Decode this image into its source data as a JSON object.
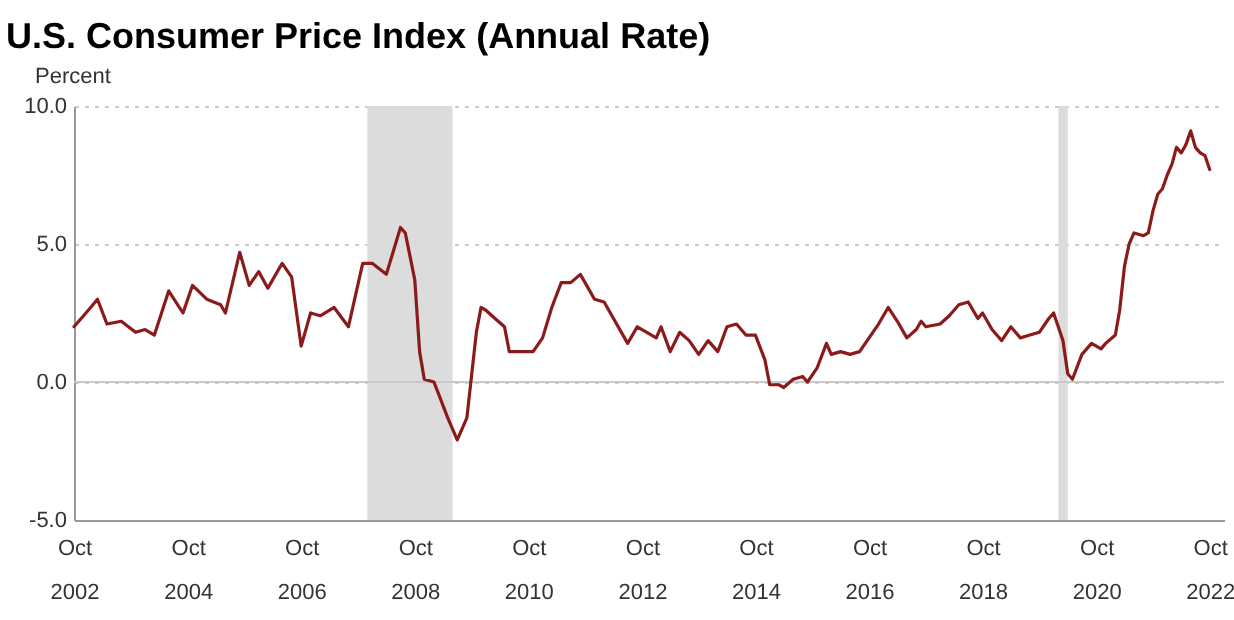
{
  "chart_data": {
    "type": "line",
    "title": "U.S. Consumer Price Index (Annual Rate)",
    "ylabel": "Percent",
    "x": [
      "2002-10",
      "2003-01",
      "2003-03",
      "2003-05",
      "2003-08",
      "2003-11",
      "2004-01",
      "2004-03",
      "2004-06",
      "2004-09",
      "2004-11",
      "2005-02",
      "2005-05",
      "2005-06",
      "2005-09",
      "2005-11",
      "2006-01",
      "2006-03",
      "2006-06",
      "2006-08",
      "2006-10",
      "2006-12",
      "2007-02",
      "2007-05",
      "2007-08",
      "2007-11",
      "2008-01",
      "2008-04",
      "2008-07",
      "2008-08",
      "2008-10",
      "2008-11",
      "2008-12",
      "2009-02",
      "2009-03",
      "2009-05",
      "2009-07",
      "2009-09",
      "2009-11",
      "2009-12",
      "2010-01",
      "2010-03",
      "2010-05",
      "2010-06",
      "2010-09",
      "2010-11",
      "2011-01",
      "2011-03",
      "2011-05",
      "2011-07",
      "2011-09",
      "2011-12",
      "2012-02",
      "2012-04",
      "2012-06",
      "2012-07",
      "2012-09",
      "2012-11",
      "2013-01",
      "2013-02",
      "2013-04",
      "2013-06",
      "2013-08",
      "2013-10",
      "2013-12",
      "2014-02",
      "2014-04",
      "2014-06",
      "2014-08",
      "2014-10",
      "2014-12",
      "2015-01",
      "2015-03",
      "2015-04",
      "2015-06",
      "2015-08",
      "2015-09",
      "2015-11",
      "2016-01",
      "2016-02",
      "2016-04",
      "2016-06",
      "2016-08",
      "2016-10",
      "2016-12",
      "2017-02",
      "2017-04",
      "2017-06",
      "2017-08",
      "2017-09",
      "2017-10",
      "2018-01",
      "2018-03",
      "2018-05",
      "2018-07",
      "2018-09",
      "2018-10",
      "2018-12",
      "2019-02",
      "2019-04",
      "2019-06",
      "2019-08",
      "2019-10",
      "2019-12",
      "2020-01",
      "2020-03",
      "2020-04",
      "2020-05",
      "2020-07",
      "2020-09",
      "2020-11",
      "2020-12",
      "2021-02",
      "2021-03",
      "2021-04",
      "2021-05",
      "2021-06",
      "2021-08",
      "2021-09",
      "2021-10",
      "2021-11",
      "2021-12",
      "2022-01",
      "2022-02",
      "2022-03",
      "2022-04",
      "2022-05",
      "2022-06",
      "2022-07",
      "2022-08",
      "2022-09",
      "2022-10"
    ],
    "series": [
      {
        "color": "#8b1a1a",
        "values": [
          2.0,
          2.6,
          3.0,
          2.1,
          2.2,
          1.8,
          1.9,
          1.7,
          3.3,
          2.5,
          3.5,
          3.0,
          2.8,
          2.5,
          4.7,
          3.5,
          4.0,
          3.4,
          4.3,
          3.8,
          1.3,
          2.5,
          2.4,
          2.7,
          2.0,
          4.3,
          4.3,
          3.9,
          5.6,
          5.4,
          3.7,
          1.1,
          0.1,
          0.0,
          -0.4,
          -1.3,
          -2.1,
          -1.3,
          1.8,
          2.7,
          2.6,
          2.3,
          2.0,
          1.1,
          1.1,
          1.1,
          1.6,
          2.7,
          3.6,
          3.6,
          3.9,
          3.0,
          2.9,
          2.3,
          1.7,
          1.4,
          2.0,
          1.8,
          1.6,
          2.0,
          1.1,
          1.8,
          1.5,
          1.0,
          1.5,
          1.1,
          2.0,
          2.1,
          1.7,
          1.7,
          0.8,
          -0.1,
          -0.1,
          -0.2,
          0.1,
          0.2,
          0.0,
          0.5,
          1.4,
          1.0,
          1.1,
          1.0,
          1.1,
          1.6,
          2.1,
          2.7,
          2.2,
          1.6,
          1.9,
          2.2,
          2.0,
          2.1,
          2.4,
          2.8,
          2.9,
          2.3,
          2.5,
          1.9,
          1.5,
          2.0,
          1.6,
          1.7,
          1.8,
          2.3,
          2.5,
          1.5,
          0.3,
          0.1,
          1.0,
          1.4,
          1.2,
          1.4,
          1.7,
          2.6,
          4.2,
          5.0,
          5.4,
          5.3,
          5.4,
          6.2,
          6.8,
          7.0,
          7.5,
          7.9,
          8.5,
          8.3,
          8.6,
          9.1,
          8.5,
          8.3,
          8.2,
          7.7
        ]
      }
    ],
    "xlim": [
      "2002-10",
      "2023-01"
    ],
    "xticks": [
      {
        "value": "2002-10",
        "label": "Oct 2002"
      },
      {
        "value": "2004-10",
        "label": "Oct 2004"
      },
      {
        "value": "2006-10",
        "label": "Oct 2006"
      },
      {
        "value": "2008-10",
        "label": "Oct 2008"
      },
      {
        "value": "2010-10",
        "label": "Oct 2010"
      },
      {
        "value": "2012-10",
        "label": "Oct 2012"
      },
      {
        "value": "2014-10",
        "label": "Oct 2014"
      },
      {
        "value": "2016-10",
        "label": "Oct 2016"
      },
      {
        "value": "2018-10",
        "label": "Oct 2018"
      },
      {
        "value": "2020-10",
        "label": "Oct 2020"
      },
      {
        "value": "2022-10",
        "label": "Oct 2022"
      }
    ],
    "ylim": [
      -5,
      10
    ],
    "yticks": [
      {
        "value": -5,
        "label": "-5.0"
      },
      {
        "value": 0,
        "label": "0.0"
      },
      {
        "value": 5,
        "label": "5.0"
      },
      {
        "value": 10,
        "label": "10.0"
      }
    ],
    "grid": "y",
    "marker": "none",
    "line_style": "solid",
    "ref_lines": [
      {
        "axis": "y",
        "value": 0,
        "color": "#c8c8c8"
      }
    ],
    "bands": [
      {
        "axis": "x",
        "from": "2007-12",
        "to": "2009-06",
        "color": "#dcdcdc"
      },
      {
        "axis": "x",
        "from": "2020-02",
        "to": "2020-04",
        "color": "#dcdcdc"
      }
    ]
  }
}
